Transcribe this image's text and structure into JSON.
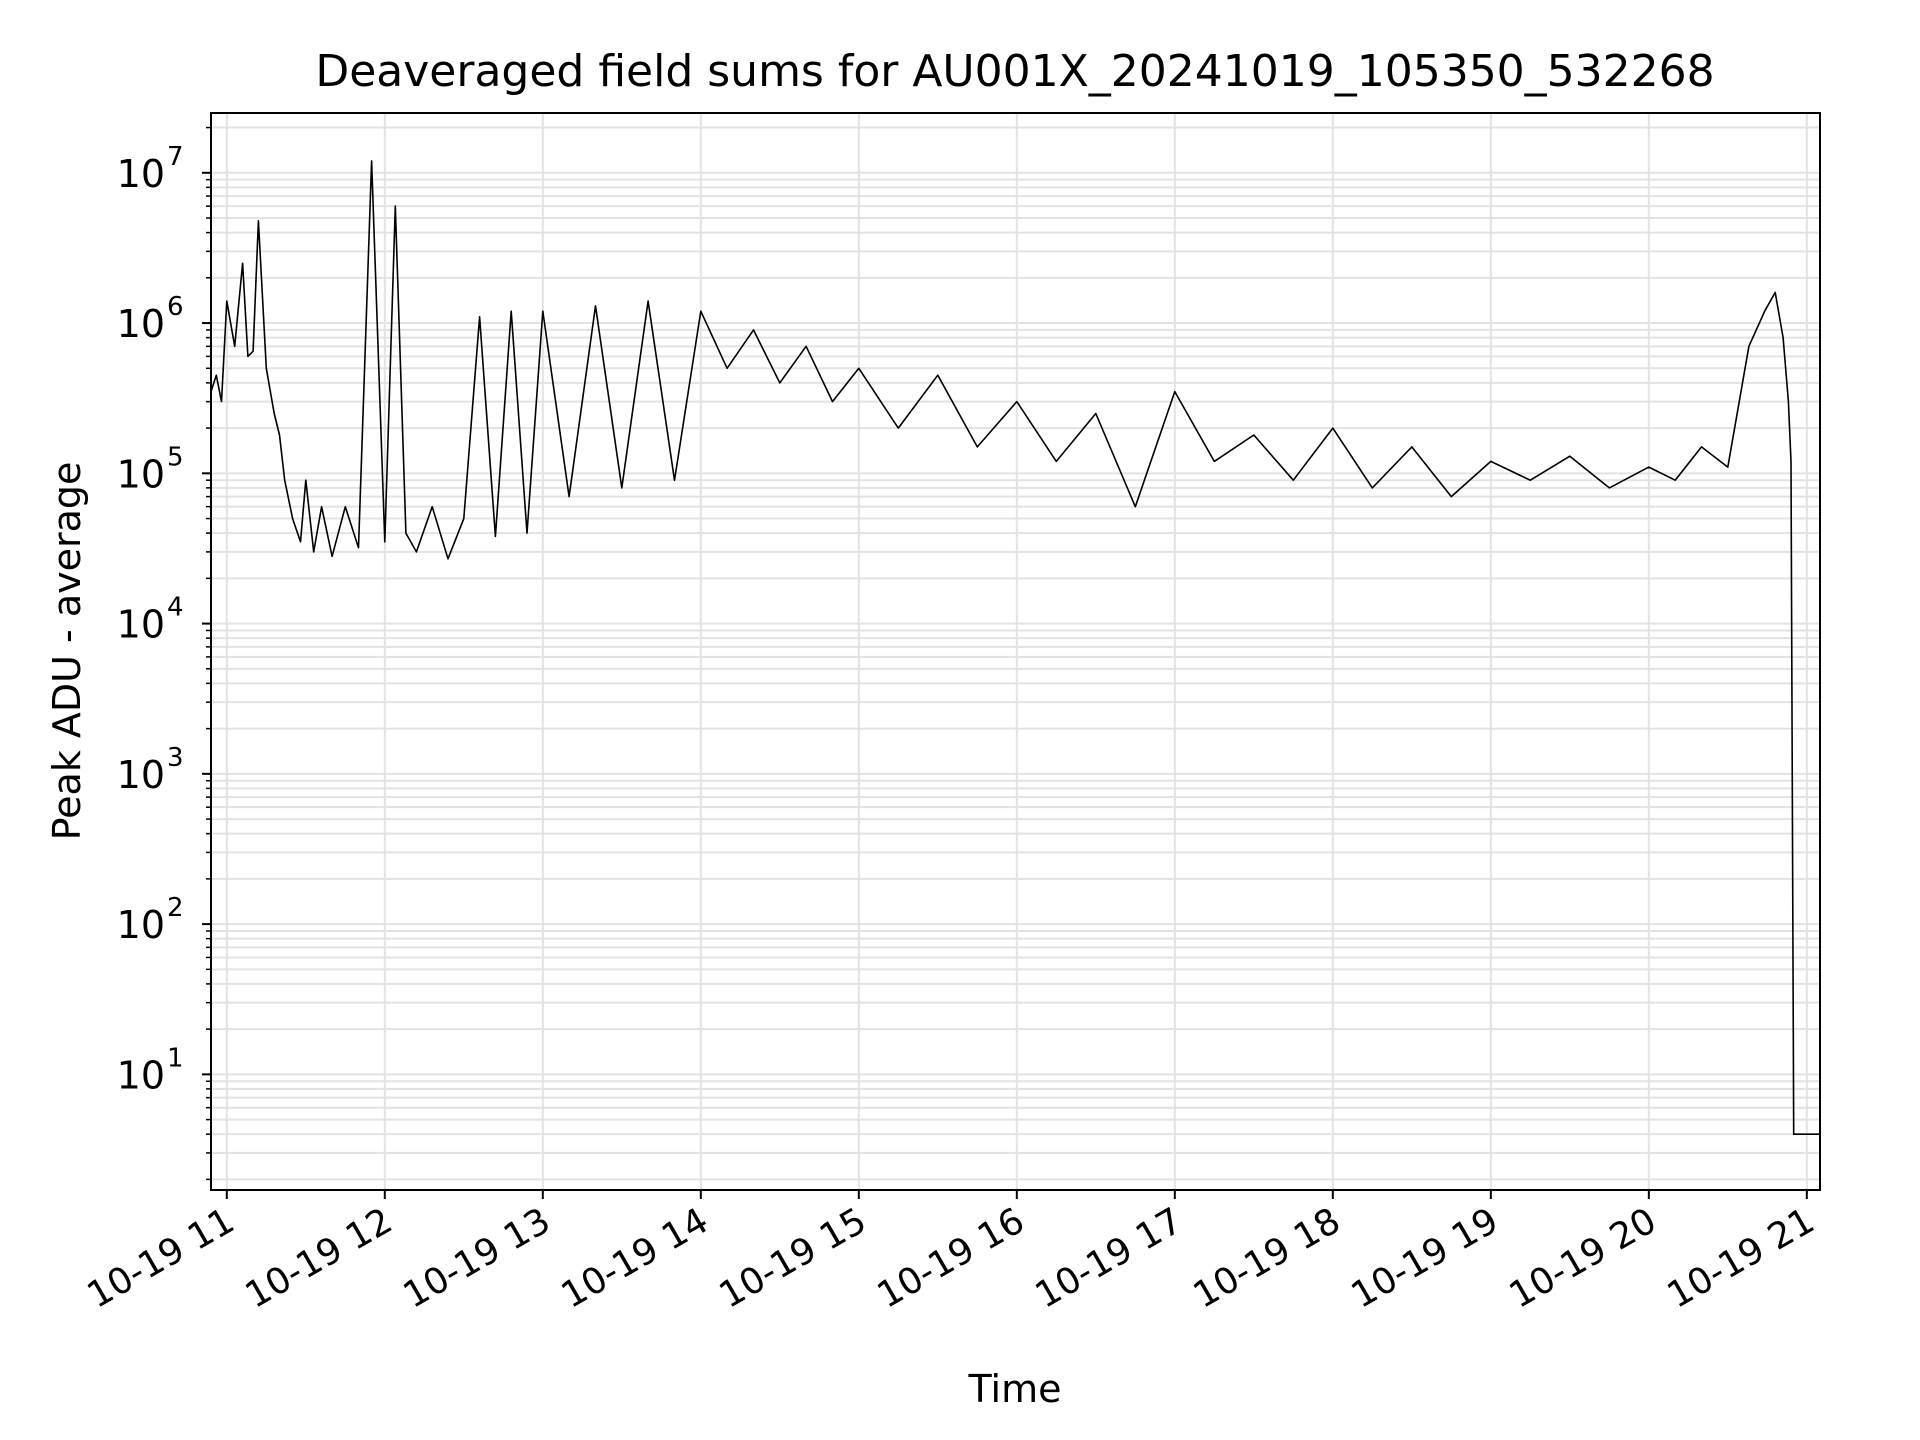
{
  "chart_data": {
    "type": "line",
    "title": "Deaveraged field sums for AU001X_20241019_105350_532268",
    "xlabel": "Time",
    "ylabel": "Peak ADU - average",
    "yscale": "log",
    "ylim": [
      1.7,
      25000000
    ],
    "xlim": [
      "2024-10-19 10:54",
      "2024-10-19 21:05"
    ],
    "x_ticks": [
      {
        "t": "2024-10-19 11:00",
        "label": "10-19 11"
      },
      {
        "t": "2024-10-19 12:00",
        "label": "10-19 12"
      },
      {
        "t": "2024-10-19 13:00",
        "label": "10-19 13"
      },
      {
        "t": "2024-10-19 14:00",
        "label": "10-19 14"
      },
      {
        "t": "2024-10-19 15:00",
        "label": "10-19 15"
      },
      {
        "t": "2024-10-19 16:00",
        "label": "10-19 16"
      },
      {
        "t": "2024-10-19 17:00",
        "label": "10-19 17"
      },
      {
        "t": "2024-10-19 18:00",
        "label": "10-19 18"
      },
      {
        "t": "2024-10-19 19:00",
        "label": "10-19 19"
      },
      {
        "t": "2024-10-19 20:00",
        "label": "10-19 20"
      },
      {
        "t": "2024-10-19 21:00",
        "label": "10-19 21"
      }
    ],
    "y_ticks": [
      {
        "value": 10,
        "base": "10",
        "exp": "1"
      },
      {
        "value": 100,
        "base": "10",
        "exp": "2"
      },
      {
        "value": 1000,
        "base": "10",
        "exp": "3"
      },
      {
        "value": 10000,
        "base": "10",
        "exp": "4"
      },
      {
        "value": 100000,
        "base": "10",
        "exp": "5"
      },
      {
        "value": 1000000,
        "base": "10",
        "exp": "6"
      },
      {
        "value": 10000000,
        "base": "10",
        "exp": "7"
      }
    ],
    "grid": true,
    "series": [
      {
        "color": "#000000",
        "x": [
          "2024-10-19 10:54",
          "2024-10-19 10:56",
          "2024-10-19 10:58",
          "2024-10-19 11:00",
          "2024-10-19 11:03",
          "2024-10-19 11:06",
          "2024-10-19 11:08",
          "2024-10-19 11:10",
          "2024-10-19 11:12",
          "2024-10-19 11:15",
          "2024-10-19 11:18",
          "2024-10-19 11:20",
          "2024-10-19 11:22",
          "2024-10-19 11:25",
          "2024-10-19 11:28",
          "2024-10-19 11:30",
          "2024-10-19 11:33",
          "2024-10-19 11:36",
          "2024-10-19 11:40",
          "2024-10-19 11:45",
          "2024-10-19 11:50",
          "2024-10-19 11:55",
          "2024-10-19 12:00",
          "2024-10-19 12:04",
          "2024-10-19 12:08",
          "2024-10-19 12:12",
          "2024-10-19 12:18",
          "2024-10-19 12:24",
          "2024-10-19 12:30",
          "2024-10-19 12:36",
          "2024-10-19 12:42",
          "2024-10-19 12:48",
          "2024-10-19 12:54",
          "2024-10-19 13:00",
          "2024-10-19 13:10",
          "2024-10-19 13:20",
          "2024-10-19 13:30",
          "2024-10-19 13:40",
          "2024-10-19 13:50",
          "2024-10-19 14:00",
          "2024-10-19 14:10",
          "2024-10-19 14:20",
          "2024-10-19 14:30",
          "2024-10-19 14:40",
          "2024-10-19 14:50",
          "2024-10-19 15:00",
          "2024-10-19 15:15",
          "2024-10-19 15:30",
          "2024-10-19 15:45",
          "2024-10-19 16:00",
          "2024-10-19 16:15",
          "2024-10-19 16:30",
          "2024-10-19 16:45",
          "2024-10-19 17:00",
          "2024-10-19 17:15",
          "2024-10-19 17:30",
          "2024-10-19 17:45",
          "2024-10-19 18:00",
          "2024-10-19 18:15",
          "2024-10-19 18:30",
          "2024-10-19 18:45",
          "2024-10-19 19:00",
          "2024-10-19 19:15",
          "2024-10-19 19:30",
          "2024-10-19 19:45",
          "2024-10-19 20:00",
          "2024-10-19 20:10",
          "2024-10-19 20:20",
          "2024-10-19 20:30",
          "2024-10-19 20:38",
          "2024-10-19 20:44",
          "2024-10-19 20:48",
          "2024-10-19 20:51",
          "2024-10-19 20:53",
          "2024-10-19 20:54",
          "2024-10-19 20:55",
          "2024-10-19 20:56",
          "2024-10-19 21:00",
          "2024-10-19 21:05"
        ],
        "y": [
          350000,
          450000,
          300000,
          1400000,
          700000,
          2500000,
          600000,
          650000,
          4800000,
          500000,
          250000,
          180000,
          90000,
          50000,
          35000,
          90000,
          30000,
          60000,
          28000,
          60000,
          32000,
          12000000,
          35000,
          6000000,
          40000,
          30000,
          60000,
          27000,
          50000,
          1100000,
          38000,
          1200000,
          40000,
          1200000,
          70000,
          1300000,
          80000,
          1400000,
          90000,
          1200000,
          500000,
          900000,
          400000,
          700000,
          300000,
          500000,
          200000,
          450000,
          150000,
          300000,
          120000,
          250000,
          60000,
          350000,
          120000,
          180000,
          90000,
          200000,
          80000,
          150000,
          70000,
          120000,
          90000,
          130000,
          80000,
          110000,
          90000,
          150000,
          110000,
          700000,
          1200000,
          1600000,
          800000,
          300000,
          120000,
          4,
          4,
          4,
          4
        ]
      }
    ]
  }
}
